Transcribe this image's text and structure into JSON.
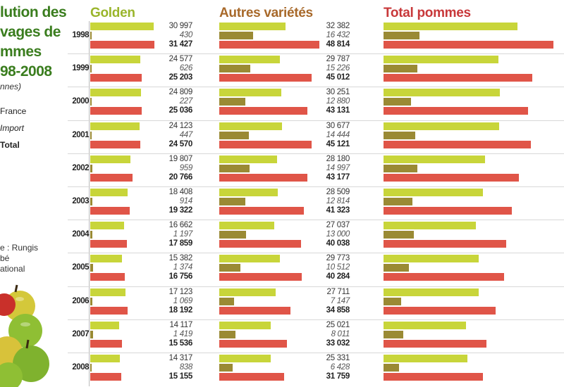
{
  "title": {
    "lines": [
      "lution des",
      "vages de",
      "mmes",
      "98-2008"
    ],
    "unit": "nnes)"
  },
  "legend": {
    "france": "France",
    "import": "Import",
    "total": "Total"
  },
  "source": {
    "lines": [
      "e : Rungis",
      "bé",
      "ational"
    ]
  },
  "colors": {
    "france": "#c8d53a",
    "import": "#9a8a34",
    "total": "#e05548",
    "golden_title": "#9ab52b",
    "autres_title": "#a8692a",
    "total_title": "#c8383a"
  },
  "chart_data": {
    "type": "bar",
    "categories": [
      "1998",
      "1999",
      "2000",
      "2001",
      "2002",
      "2003",
      "2004",
      "2005",
      "2006",
      "2007",
      "2008"
    ],
    "groups": [
      {
        "title": "Golden",
        "series": [
          {
            "name": "France",
            "values": [
              "30 997",
              "24 577",
              "24 809",
              "24 123",
              "19 807",
              "18 408",
              "16 662",
              "15 382",
              "17 123",
              "14 117",
              "14 317"
            ]
          },
          {
            "name": "Import",
            "values": [
              "430",
              "626",
              "227",
              "447",
              "959",
              "914",
              "1 197",
              "1 374",
              "1 069",
              "1 419",
              "838"
            ]
          },
          {
            "name": "Total",
            "values": [
              "31 427",
              "25 203",
              "25 036",
              "24 570",
              "20 766",
              "19 322",
              "17 859",
              "16 756",
              "18 192",
              "15 536",
              "15 155"
            ]
          }
        ]
      },
      {
        "title": "Autres variétés",
        "series": [
          {
            "name": "France",
            "values": [
              "32 382",
              "29 787",
              "30 251",
              "30 677",
              "28 180",
              "28 509",
              "27 037",
              "29 773",
              "27 711",
              "25 021",
              "25 331"
            ]
          },
          {
            "name": "Import",
            "values": [
              "16 432",
              "15 226",
              "12 880",
              "14 444",
              "14 997",
              "12 814",
              "13 000",
              "10 512",
              "7 147",
              "8 011",
              "6 428"
            ]
          },
          {
            "name": "Total",
            "values": [
              "48 814",
              "45 012",
              "43 131",
              "45 121",
              "43 177",
              "41 323",
              "40 038",
              "40 284",
              "34 858",
              "33 032",
              "31 759"
            ]
          }
        ]
      },
      {
        "title": "Total pommes",
        "series": [
          {
            "name": "France",
            "values": [
              63379,
              54364,
              55060,
              54800,
              47987,
              46917,
              43699,
              45155,
              44834,
              39138,
              39648
            ]
          },
          {
            "name": "Import",
            "values": [
              16862,
              15852,
              13107,
              14891,
              15956,
              13728,
              14197,
              11886,
              8216,
              9430,
              7266
            ]
          },
          {
            "name": "Total",
            "values": [
              80241,
              70216,
              68167,
              69691,
              63943,
              60645,
              57896,
              57040,
              53050,
              48568,
              46914
            ]
          }
        ]
      }
    ]
  }
}
